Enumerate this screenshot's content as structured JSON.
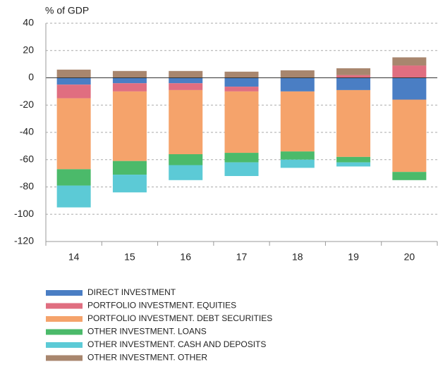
{
  "chart_data": {
    "type": "bar",
    "stacked": true,
    "y_axis_label": "% of GDP",
    "categories": [
      "14",
      "15",
      "16",
      "17",
      "18",
      "19",
      "20"
    ],
    "series": [
      {
        "name": "DIRECT INVESTMENT",
        "color": "#4a7ec4",
        "values": [
          -5,
          -4,
          -4,
          -6.5,
          -10,
          -9,
          -16
        ]
      },
      {
        "name": "PORTFOLIO INVESTMENT. EQUITIES",
        "color": "#e06e80",
        "values": [
          -10,
          -6,
          -5,
          -3.5,
          0,
          2,
          9
        ]
      },
      {
        "name": "PORTFOLIO INVESTMENT. DEBT SECURITIES",
        "color": "#f5a36b",
        "values": [
          -52,
          -51,
          -47,
          -45,
          -44,
          -49,
          -53
        ]
      },
      {
        "name": "OTHER INVESTMENT. LOANS",
        "color": "#4bba6a",
        "values": [
          -12,
          -10,
          -8,
          -7,
          -6,
          -4,
          -6
        ]
      },
      {
        "name": "OTHER INVESTMENT. CASH AND DEPOSITS",
        "color": "#5ccad6",
        "values": [
          -16,
          -13,
          -11,
          -10,
          -6,
          -3,
          0
        ]
      },
      {
        "name": "OTHER INVESTMENT. OTHER",
        "color": "#a8866e",
        "values": [
          6,
          5,
          5,
          4.5,
          5.5,
          5,
          6
        ]
      }
    ],
    "ylim": [
      -120,
      40
    ],
    "yticks": [
      40,
      20,
      0,
      -20,
      -40,
      -60,
      -80,
      -100,
      -120
    ],
    "grid": true,
    "legend": "bottom"
  }
}
